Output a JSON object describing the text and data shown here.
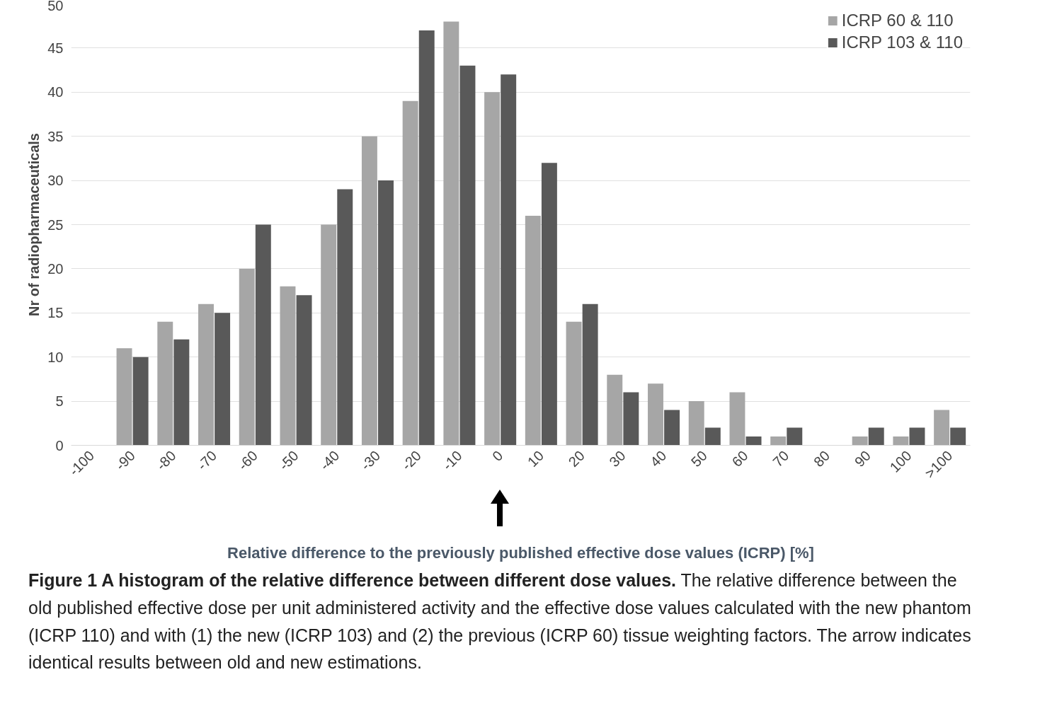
{
  "chart_data": {
    "type": "bar",
    "xlabel": "Relative difference to the previously published effective dose values (ICRP) [%]",
    "ylabel": "Nr of radiopharmaceuticals",
    "categories": [
      "-100",
      "-90",
      "-80",
      "-70",
      "-60",
      "-50",
      "-40",
      "-30",
      "-20",
      "-10",
      "0",
      "10",
      "20",
      "30",
      "40",
      "50",
      "60",
      "70",
      "80",
      "90",
      "100",
      ">100"
    ],
    "series": [
      {
        "name": "ICRP 60 & 110",
        "color": "#a6a6a6",
        "values": [
          0,
          11,
          14,
          16,
          20,
          18,
          25,
          35,
          39,
          48,
          40,
          26,
          14,
          8,
          7,
          5,
          6,
          1,
          0,
          1,
          1,
          4
        ]
      },
      {
        "name": "ICRP 103 & 110",
        "color": "#595959",
        "values": [
          0,
          10,
          12,
          15,
          25,
          17,
          29,
          30,
          47,
          43,
          42,
          32,
          16,
          6,
          4,
          2,
          1,
          2,
          0,
          2,
          2,
          2
        ]
      }
    ],
    "ylim": [
      0,
      50
    ],
    "yticks": [
      0,
      5,
      10,
      15,
      20,
      25,
      30,
      35,
      40,
      45,
      50
    ],
    "grid": "y",
    "legend": "top right",
    "annotations": [
      "Figure 1 A histogram of the relative difference between different dose values.",
      "The relative difference between the old published effective dose per unit administered activity and the effective dose values calculated with the new phantom (ICRP 110) and with (1) the new (ICRP 103) and (2) the previous (ICRP 60) tissue weighting factors. The arrow indicates identical results between old and new estimations."
    ]
  }
}
